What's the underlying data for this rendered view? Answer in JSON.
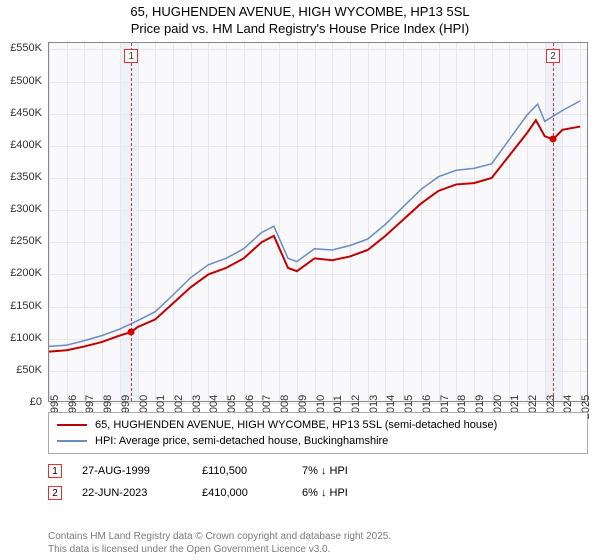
{
  "title_line1": "65, HUGHENDEN AVENUE, HIGH WYCOMBE, HP13 5SL",
  "title_line2": "Price paid vs. HM Land Registry's House Price Index (HPI)",
  "chart": {
    "type": "line",
    "background_color": "#f9f9fb",
    "shade_color": "#eef1f7",
    "grid_color": "#e6e6ec",
    "border_color": "#888888",
    "xlim": [
      1995,
      2025.5
    ],
    "ylim": [
      0,
      560000
    ],
    "yticks": [
      0,
      50000,
      100000,
      150000,
      200000,
      250000,
      300000,
      350000,
      400000,
      450000,
      500000,
      550000
    ],
    "ytick_labels": [
      "£0",
      "£50K",
      "£100K",
      "£150K",
      "£200K",
      "£250K",
      "£300K",
      "£350K",
      "£400K",
      "£450K",
      "£500K",
      "£550K"
    ],
    "xticks": [
      1995,
      1996,
      1997,
      1998,
      1999,
      2000,
      2001,
      2002,
      2003,
      2004,
      2005,
      2006,
      2007,
      2008,
      2009,
      2010,
      2011,
      2012,
      2013,
      2014,
      2015,
      2016,
      2017,
      2018,
      2019,
      2020,
      2021,
      2022,
      2023,
      2024,
      2025
    ],
    "series": [
      {
        "name": "property",
        "color": "#c00000",
        "width": 2,
        "points": [
          [
            1995,
            80000
          ],
          [
            1996,
            82000
          ],
          [
            1997,
            88000
          ],
          [
            1998,
            95000
          ],
          [
            1999,
            105000
          ],
          [
            1999.65,
            110500
          ],
          [
            2000,
            118000
          ],
          [
            2001,
            130000
          ],
          [
            2002,
            155000
          ],
          [
            2003,
            180000
          ],
          [
            2004,
            200000
          ],
          [
            2005,
            210000
          ],
          [
            2006,
            225000
          ],
          [
            2007,
            250000
          ],
          [
            2007.7,
            260000
          ],
          [
            2008.5,
            210000
          ],
          [
            2009,
            205000
          ],
          [
            2010,
            225000
          ],
          [
            2011,
            222000
          ],
          [
            2012,
            228000
          ],
          [
            2013,
            238000
          ],
          [
            2014,
            260000
          ],
          [
            2015,
            285000
          ],
          [
            2016,
            310000
          ],
          [
            2017,
            330000
          ],
          [
            2018,
            340000
          ],
          [
            2019,
            342000
          ],
          [
            2020,
            350000
          ],
          [
            2021,
            385000
          ],
          [
            2022,
            420000
          ],
          [
            2022.5,
            440000
          ],
          [
            2023,
            415000
          ],
          [
            2023.47,
            410000
          ],
          [
            2024,
            425000
          ],
          [
            2025,
            430000
          ]
        ]
      },
      {
        "name": "hpi",
        "color": "#6a8cc7",
        "width": 1.5,
        "points": [
          [
            1995,
            88000
          ],
          [
            1996,
            90000
          ],
          [
            1997,
            97000
          ],
          [
            1998,
            105000
          ],
          [
            1999,
            115000
          ],
          [
            2000,
            128000
          ],
          [
            2001,
            142000
          ],
          [
            2002,
            168000
          ],
          [
            2003,
            195000
          ],
          [
            2004,
            215000
          ],
          [
            2005,
            225000
          ],
          [
            2006,
            240000
          ],
          [
            2007,
            265000
          ],
          [
            2007.7,
            275000
          ],
          [
            2008.5,
            225000
          ],
          [
            2009,
            220000
          ],
          [
            2010,
            240000
          ],
          [
            2011,
            238000
          ],
          [
            2012,
            245000
          ],
          [
            2013,
            255000
          ],
          [
            2014,
            278000
          ],
          [
            2015,
            305000
          ],
          [
            2016,
            332000
          ],
          [
            2017,
            352000
          ],
          [
            2018,
            362000
          ],
          [
            2019,
            365000
          ],
          [
            2020,
            372000
          ],
          [
            2021,
            410000
          ],
          [
            2022,
            448000
          ],
          [
            2022.6,
            465000
          ],
          [
            2023,
            438000
          ],
          [
            2024,
            455000
          ],
          [
            2025,
            470000
          ]
        ]
      }
    ],
    "shaded_ranges": [
      [
        1999,
        2000
      ],
      [
        2023,
        2024
      ]
    ],
    "markers": [
      {
        "n": "1",
        "x": 1999.65,
        "box_y": -20,
        "dot_y": 110500
      },
      {
        "n": "2",
        "x": 2023.47,
        "box_y": -20,
        "dot_y": 410000
      }
    ]
  },
  "legend": {
    "items": [
      {
        "color": "#c00000",
        "label": "65, HUGHENDEN AVENUE, HIGH WYCOMBE, HP13 5SL (semi-detached house)"
      },
      {
        "color": "#6a8cc7",
        "label": "HPI: Average price, semi-detached house, Buckinghamshire"
      }
    ]
  },
  "events": [
    {
      "n": "1",
      "date": "27-AUG-1999",
      "price": "£110,500",
      "pct": "7% ↓ HPI"
    },
    {
      "n": "2",
      "date": "22-JUN-2023",
      "price": "£410,000",
      "pct": "6% ↓ HPI"
    }
  ],
  "footer_line1": "Contains HM Land Registry data © Crown copyright and database right 2025.",
  "footer_line2": "This data is licensed under the Open Government Licence v3.0."
}
